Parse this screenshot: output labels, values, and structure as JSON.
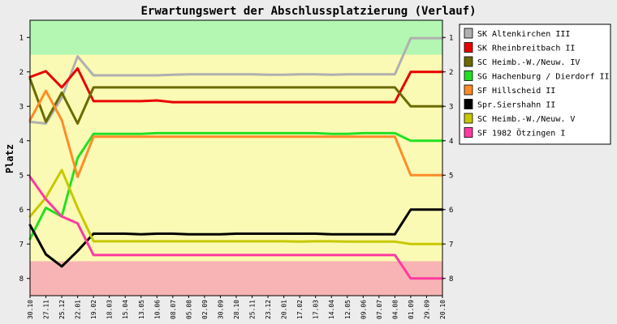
{
  "chart_data": {
    "type": "line",
    "title": "Erwartungswert der Abschlussplatzierung (Verlauf)",
    "ylabel": "Platz",
    "xlabel": "",
    "ylim": [
      0.5,
      8.5
    ],
    "y_reversed": true,
    "y_ticks": [
      1,
      2,
      3,
      4,
      5,
      6,
      7,
      8
    ],
    "bands": [
      {
        "from": 0.5,
        "to": 1.5,
        "color": "#b3f7b3"
      },
      {
        "from": 1.5,
        "to": 7.5,
        "color": "#fafab4"
      },
      {
        "from": 7.5,
        "to": 8.5,
        "color": "#f8b4b4"
      }
    ],
    "x": [
      "30.10",
      "27.11",
      "25.12",
      "22.01",
      "19.02",
      "18.03",
      "15.04",
      "13.05",
      "10.06",
      "08.07",
      "05.08",
      "02.09",
      "30.09",
      "28.10",
      "25.11",
      "23.12",
      "20.01",
      "17.02",
      "17.03",
      "14.04",
      "12.05",
      "09.06",
      "07.07",
      "04.08",
      "01.09",
      "29.09",
      "20.10"
    ],
    "legend_placement": "right",
    "series": [
      {
        "name": "SK Altenkirchen III",
        "color": "#b0b0b0",
        "values": [
          3.45,
          3.5,
          2.75,
          1.55,
          2.1,
          2.1,
          2.1,
          2.1,
          2.1,
          2.08,
          2.07,
          2.07,
          2.07,
          2.07,
          2.07,
          2.08,
          2.08,
          2.07,
          2.07,
          2.08,
          2.07,
          2.07,
          2.07,
          2.07,
          1.02,
          1.02,
          1.02
        ]
      },
      {
        "name": "SK Rheinbreitbach II",
        "color": "#e80000",
        "values": [
          2.15,
          1.98,
          2.45,
          1.9,
          2.85,
          2.85,
          2.85,
          2.85,
          2.83,
          2.88,
          2.88,
          2.88,
          2.88,
          2.88,
          2.88,
          2.88,
          2.88,
          2.88,
          2.88,
          2.88,
          2.88,
          2.88,
          2.88,
          2.88,
          2.0,
          2.0,
          2.0
        ]
      },
      {
        "name": "SC Heimb.-W./Neuw. IV",
        "color": "#6b6b00",
        "values": [
          2.2,
          3.45,
          2.6,
          3.5,
          2.45,
          2.45,
          2.45,
          2.45,
          2.45,
          2.45,
          2.45,
          2.45,
          2.45,
          2.45,
          2.45,
          2.45,
          2.45,
          2.45,
          2.45,
          2.45,
          2.45,
          2.45,
          2.45,
          2.45,
          3.0,
          3.0,
          3.0
        ]
      },
      {
        "name": "SG Hachenburg / Dierdorf II",
        "color": "#22e022",
        "values": [
          6.85,
          5.95,
          6.2,
          4.5,
          3.8,
          3.8,
          3.8,
          3.8,
          3.78,
          3.78,
          3.78,
          3.78,
          3.78,
          3.78,
          3.78,
          3.78,
          3.78,
          3.78,
          3.78,
          3.8,
          3.8,
          3.78,
          3.78,
          3.78,
          4.0,
          4.0,
          4.0
        ]
      },
      {
        "name": "SF Hillscheid II",
        "color": "#ff8c2a",
        "values": [
          3.4,
          2.55,
          3.4,
          5.05,
          3.88,
          3.88,
          3.88,
          3.88,
          3.88,
          3.88,
          3.88,
          3.88,
          3.88,
          3.88,
          3.88,
          3.88,
          3.88,
          3.88,
          3.88,
          3.88,
          3.88,
          3.88,
          3.88,
          3.88,
          5.0,
          5.0,
          5.0
        ]
      },
      {
        "name": "Spr.Siershahn II",
        "color": "#000000",
        "values": [
          6.45,
          7.3,
          7.65,
          7.2,
          6.7,
          6.7,
          6.7,
          6.72,
          6.7,
          6.7,
          6.72,
          6.72,
          6.72,
          6.7,
          6.7,
          6.7,
          6.7,
          6.7,
          6.7,
          6.72,
          6.72,
          6.72,
          6.72,
          6.72,
          6.0,
          6.0,
          6.0
        ]
      },
      {
        "name": "SC Heimb.-W./Neuw. V",
        "color": "#c8c800",
        "values": [
          6.2,
          5.65,
          4.85,
          5.95,
          6.92,
          6.92,
          6.92,
          6.92,
          6.92,
          6.92,
          6.92,
          6.92,
          6.92,
          6.92,
          6.92,
          6.92,
          6.92,
          6.93,
          6.92,
          6.92,
          6.93,
          6.93,
          6.93,
          6.93,
          7.0,
          7.0,
          7.0
        ]
      },
      {
        "name": "SF 1982 Ötzingen I",
        "color": "#ff3aa0",
        "values": [
          5.05,
          5.7,
          6.2,
          6.4,
          7.32,
          7.32,
          7.32,
          7.32,
          7.32,
          7.32,
          7.32,
          7.32,
          7.32,
          7.32,
          7.32,
          7.32,
          7.32,
          7.32,
          7.32,
          7.32,
          7.32,
          7.32,
          7.32,
          7.32,
          8.0,
          8.0,
          8.0
        ]
      }
    ]
  }
}
